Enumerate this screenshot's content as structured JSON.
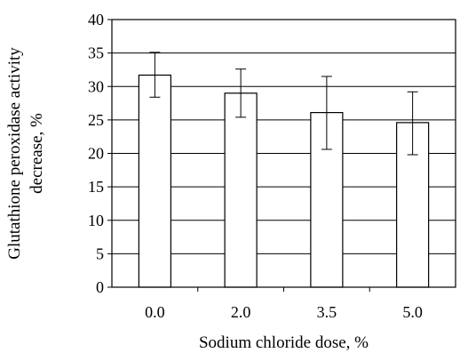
{
  "chart_data": {
    "type": "bar",
    "title": "",
    "xlabel": "Sodium chloride dose, %",
    "ylabel_lines": [
      "Glutathione peroxidase activity",
      "decrease, %"
    ],
    "categories": [
      "0.0",
      "2.0",
      "3.5",
      "5.0"
    ],
    "values": [
      31.7,
      29.0,
      26.1,
      24.6
    ],
    "error_bars": [
      {
        "low": 28.4,
        "high": 35.1
      },
      {
        "low": 25.4,
        "high": 32.6
      },
      {
        "low": 20.6,
        "high": 31.5
      },
      {
        "low": 19.8,
        "high": 29.2
      }
    ],
    "ylim": [
      0,
      40
    ],
    "yticks": [
      0,
      5,
      10,
      15,
      20,
      25,
      30,
      35,
      40
    ],
    "grid": true,
    "legend": "none",
    "colors": {
      "bar_fill": "#ffffff",
      "bar_stroke": "#000000",
      "grid": "#000000"
    }
  }
}
